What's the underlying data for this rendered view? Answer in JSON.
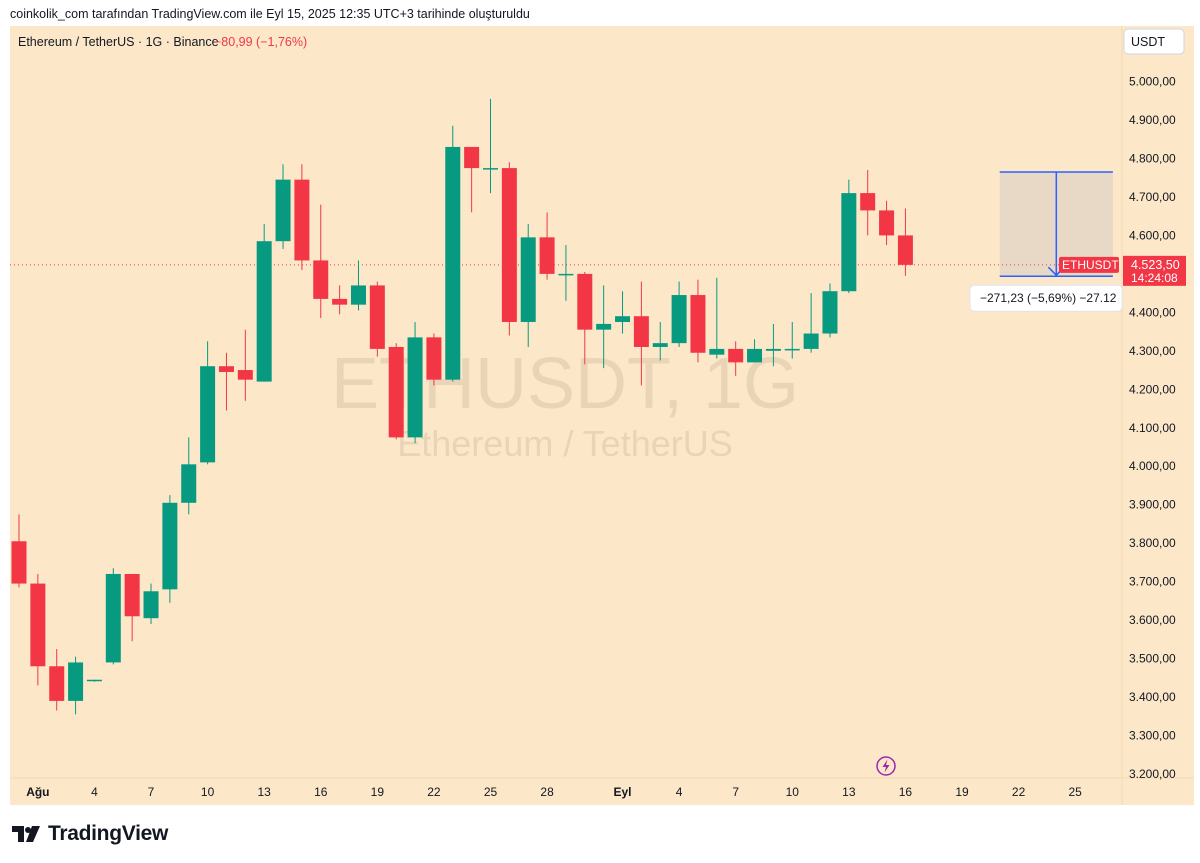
{
  "credit": "coinkolik_com tarafından TradingView.com ile Eyl 15, 2025 12:35 UTC+3 tarihinde oluşturuldu",
  "header": {
    "symbol": "Ethereum / TetherUS · 1G · Binance",
    "change": "−80,99 (−1,76%)"
  },
  "currency_button": "USDT",
  "watermark": {
    "line1": "ETHUSDT, 1G",
    "line2": "Ethereum / TetherUS"
  },
  "price_tag": {
    "symbol": "ETHUSDT",
    "price": "4.523,50",
    "countdown": "14:24:08"
  },
  "measure_label": "−271,23 (−5,69%) −27.12",
  "logo_text": "TradingView",
  "colors": {
    "bg": "#fce8c8",
    "up": "#089981",
    "down": "#f23645",
    "measure": "#2962ff"
  },
  "chart_data": {
    "type": "candlestick",
    "y_ticks": [
      {
        "value": 5000,
        "label": "5.000,00"
      },
      {
        "value": 4900,
        "label": "4.900,00"
      },
      {
        "value": 4800,
        "label": "4.800,00"
      },
      {
        "value": 4700,
        "label": "4.700,00"
      },
      {
        "value": 4600,
        "label": "4.600,00"
      },
      {
        "value": 4400,
        "label": "4.400,00"
      },
      {
        "value": 4300,
        "label": "4.300,00"
      },
      {
        "value": 4200,
        "label": "4.200,00"
      },
      {
        "value": 4100,
        "label": "4.100,00"
      },
      {
        "value": 4000,
        "label": "4.000,00"
      },
      {
        "value": 3900,
        "label": "3.900,00"
      },
      {
        "value": 3800,
        "label": "3.800,00"
      },
      {
        "value": 3700,
        "label": "3.700,00"
      },
      {
        "value": 3600,
        "label": "3.600,00"
      },
      {
        "value": 3500,
        "label": "3.500,00"
      },
      {
        "value": 3400,
        "label": "3.400,00"
      },
      {
        "value": 3300,
        "label": "3.300,00"
      },
      {
        "value": 3200,
        "label": "3.200,00"
      }
    ],
    "x_ticks": [
      {
        "i": 1,
        "label": "Ağu",
        "bold": true
      },
      {
        "i": 4,
        "label": "4"
      },
      {
        "i": 7,
        "label": "7"
      },
      {
        "i": 10,
        "label": "10"
      },
      {
        "i": 13,
        "label": "13"
      },
      {
        "i": 16,
        "label": "16"
      },
      {
        "i": 19,
        "label": "19"
      },
      {
        "i": 22,
        "label": "22"
      },
      {
        "i": 25,
        "label": "25"
      },
      {
        "i": 28,
        "label": "28"
      },
      {
        "i": 32,
        "label": "Eyl",
        "bold": true
      },
      {
        "i": 35,
        "label": "4"
      },
      {
        "i": 38,
        "label": "7"
      },
      {
        "i": 41,
        "label": "10"
      },
      {
        "i": 44,
        "label": "13"
      },
      {
        "i": 47,
        "label": "16"
      },
      {
        "i": 50,
        "label": "19"
      },
      {
        "i": 53,
        "label": "22"
      },
      {
        "i": 56,
        "label": "25"
      }
    ],
    "current_price": 4523.5,
    "candles": [
      {
        "o": 3805,
        "h": 3875,
        "l": 3685,
        "c": 3695
      },
      {
        "o": 3695,
        "h": 3720,
        "l": 3430,
        "c": 3480
      },
      {
        "o": 3480,
        "h": 3525,
        "l": 3365,
        "c": 3390
      },
      {
        "o": 3390,
        "h": 3505,
        "l": 3355,
        "c": 3490
      },
      {
        "o": 3445,
        "h": 3445,
        "l": 3440,
        "c": 3445
      },
      {
        "o": 3490,
        "h": 3735,
        "l": 3485,
        "c": 3720
      },
      {
        "o": 3720,
        "h": 3720,
        "l": 3545,
        "c": 3610
      },
      {
        "o": 3605,
        "h": 3695,
        "l": 3590,
        "c": 3675
      },
      {
        "o": 3680,
        "h": 3925,
        "l": 3645,
        "c": 3905
      },
      {
        "o": 3905,
        "h": 4075,
        "l": 3875,
        "c": 4005
      },
      {
        "o": 4010,
        "h": 4325,
        "l": 4005,
        "c": 4260
      },
      {
        "o": 4260,
        "h": 4295,
        "l": 4145,
        "c": 4245
      },
      {
        "o": 4250,
        "h": 4355,
        "l": 4170,
        "c": 4225
      },
      {
        "o": 4220,
        "h": 4630,
        "l": 4220,
        "c": 4585
      },
      {
        "o": 4585,
        "h": 4785,
        "l": 4565,
        "c": 4745
      },
      {
        "o": 4745,
        "h": 4785,
        "l": 4510,
        "c": 4535
      },
      {
        "o": 4535,
        "h": 4680,
        "l": 4385,
        "c": 4435
      },
      {
        "o": 4435,
        "h": 4470,
        "l": 4395,
        "c": 4420
      },
      {
        "o": 4420,
        "h": 4535,
        "l": 4405,
        "c": 4470
      },
      {
        "o": 4470,
        "h": 4480,
        "l": 4285,
        "c": 4305
      },
      {
        "o": 4310,
        "h": 4320,
        "l": 4070,
        "c": 4075
      },
      {
        "o": 4075,
        "h": 4375,
        "l": 4060,
        "c": 4335
      },
      {
        "o": 4335,
        "h": 4345,
        "l": 4210,
        "c": 4225
      },
      {
        "o": 4225,
        "h": 4885,
        "l": 4220,
        "c": 4830
      },
      {
        "o": 4830,
        "h": 4830,
        "l": 4660,
        "c": 4775
      },
      {
        "o": 4775,
        "h": 4955,
        "l": 4710,
        "c": 4775
      },
      {
        "o": 4775,
        "h": 4790,
        "l": 4340,
        "c": 4375
      },
      {
        "o": 4375,
        "h": 4630,
        "l": 4310,
        "c": 4595
      },
      {
        "o": 4595,
        "h": 4660,
        "l": 4485,
        "c": 4500
      },
      {
        "o": 4500,
        "h": 4575,
        "l": 4430,
        "c": 4500
      },
      {
        "o": 4500,
        "h": 4505,
        "l": 4265,
        "c": 4355
      },
      {
        "o": 4355,
        "h": 4470,
        "l": 4255,
        "c": 4370
      },
      {
        "o": 4375,
        "h": 4455,
        "l": 4345,
        "c": 4390
      },
      {
        "o": 4390,
        "h": 4480,
        "l": 4210,
        "c": 4310
      },
      {
        "o": 4310,
        "h": 4375,
        "l": 4275,
        "c": 4320
      },
      {
        "o": 4320,
        "h": 4480,
        "l": 4310,
        "c": 4445
      },
      {
        "o": 4445,
        "h": 4485,
        "l": 4270,
        "c": 4295
      },
      {
        "o": 4290,
        "h": 4490,
        "l": 4280,
        "c": 4305
      },
      {
        "o": 4305,
        "h": 4325,
        "l": 4235,
        "c": 4270
      },
      {
        "o": 4270,
        "h": 4330,
        "l": 4270,
        "c": 4305
      },
      {
        "o": 4300,
        "h": 4370,
        "l": 4260,
        "c": 4305
      },
      {
        "o": 4305,
        "h": 4375,
        "l": 4280,
        "c": 4305
      },
      {
        "o": 4305,
        "h": 4450,
        "l": 4295,
        "c": 4345
      },
      {
        "o": 4345,
        "h": 4475,
        "l": 4335,
        "c": 4455
      },
      {
        "o": 4455,
        "h": 4745,
        "l": 4450,
        "c": 4710
      },
      {
        "o": 4710,
        "h": 4770,
        "l": 4600,
        "c": 4665
      },
      {
        "o": 4665,
        "h": 4690,
        "l": 4575,
        "c": 4600
      },
      {
        "o": 4600,
        "h": 4670,
        "l": 4495,
        "c": 4523.5
      }
    ],
    "measure": {
      "from_i": 52,
      "to_i": 58,
      "top": 4765,
      "bottom": 4494
    }
  }
}
